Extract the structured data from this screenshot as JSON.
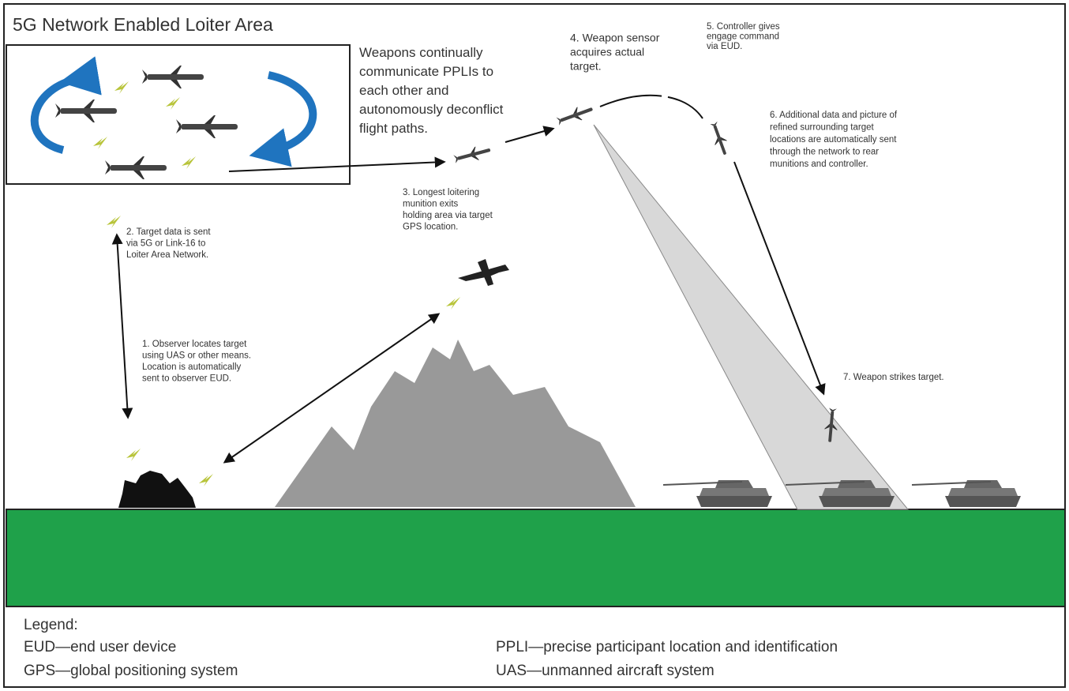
{
  "title": "5G Network Enabled Loiter Area",
  "loiter_note": {
    "lines": [
      "Weapons continually",
      "communicate PPLIs to",
      "each other and",
      "autonomously deconflict",
      "flight paths."
    ]
  },
  "steps": [
    {
      "lines": [
        "1. Observer locates target",
        "using UAS or other means.",
        "Location is automatically",
        "sent to observer EUD."
      ]
    },
    {
      "lines": [
        "2. Target data is sent",
        "via 5G or Link-16 to",
        "Loiter Area Network."
      ]
    },
    {
      "lines": [
        "3. Longest loitering",
        "munition exits",
        "holding area via target",
        "GPS location."
      ]
    },
    {
      "lines": [
        "4. Weapon sensor",
        "acquires actual",
        "target."
      ]
    },
    {
      "lines": [
        "5. Controller gives",
        "engage command",
        "via EUD."
      ]
    },
    {
      "lines": [
        "6. Additional data and picture of",
        "refined surrounding target",
        "locations are automatically sent",
        "through the network to rear",
        "munitions and controller."
      ]
    },
    {
      "lines": [
        "7. Weapon strikes target."
      ]
    }
  ],
  "legend": {
    "title": "Legend:",
    "entries": [
      "EUD—end user device",
      "GPS—global positioning system",
      "PPLI—precise participant location and identification",
      "UAS—unmanned aircraft system"
    ]
  }
}
